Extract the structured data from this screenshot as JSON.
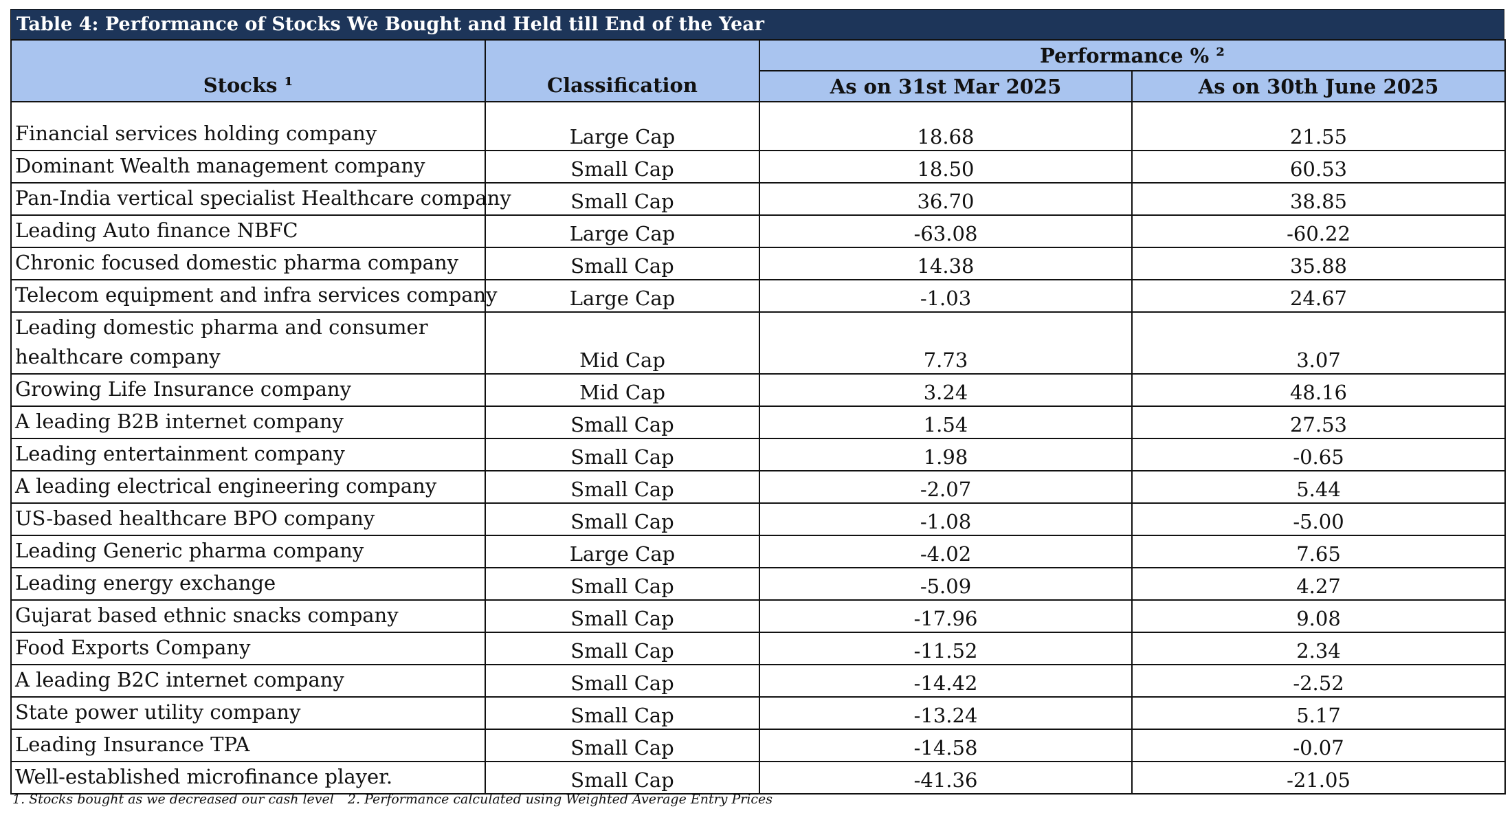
{
  "table": {
    "title": "Table 4: Performance of Stocks We Bought and Held till End of the Year",
    "headers": {
      "stocks": "Stocks ¹",
      "classification": "Classification",
      "performance": "Performance % ²",
      "col_mar": "As on 31st Mar 2025",
      "col_jun": "As on 30th June 2025"
    },
    "rows": [
      {
        "stock": "Financial services holding company",
        "classification": "Large Cap",
        "mar": "18.68",
        "jun": "21.55"
      },
      {
        "stock": "Dominant Wealth management company",
        "classification": "Small Cap",
        "mar": "18.50",
        "jun": "60.53"
      },
      {
        "stock": "Pan-India vertical specialist Healthcare company",
        "classification": "Small Cap",
        "mar": "36.70",
        "jun": "38.85"
      },
      {
        "stock": "Leading Auto finance NBFC",
        "classification": "Large Cap",
        "mar": "-63.08",
        "jun": "-60.22"
      },
      {
        "stock": "Chronic focused domestic pharma company",
        "classification": "Small Cap",
        "mar": "14.38",
        "jun": "35.88"
      },
      {
        "stock": "Telecom equipment and infra services company",
        "classification": "Large Cap",
        "mar": "-1.03",
        "jun": "24.67"
      },
      {
        "stock": "Leading domestic pharma and consumer healthcare company",
        "classification": "Mid Cap",
        "mar": "7.73",
        "jun": "3.07"
      },
      {
        "stock": "Growing Life Insurance company",
        "classification": "Mid Cap",
        "mar": "3.24",
        "jun": "48.16"
      },
      {
        "stock": "A leading B2B internet company",
        "classification": "Small Cap",
        "mar": "1.54",
        "jun": "27.53"
      },
      {
        "stock": "Leading entertainment company",
        "classification": "Small Cap",
        "mar": "1.98",
        "jun": "-0.65"
      },
      {
        "stock": "A leading electrical engineering company",
        "classification": "Small Cap",
        "mar": "-2.07",
        "jun": "5.44"
      },
      {
        "stock": "US-based healthcare BPO company",
        "classification": "Small Cap",
        "mar": "-1.08",
        "jun": "-5.00"
      },
      {
        "stock": "Leading Generic pharma company",
        "classification": "Large Cap",
        "mar": "-4.02",
        "jun": "7.65"
      },
      {
        "stock": "Leading energy exchange",
        "classification": "Small Cap",
        "mar": "-5.09",
        "jun": "4.27"
      },
      {
        "stock": "Gujarat based ethnic snacks company",
        "classification": "Small Cap",
        "mar": "-17.96",
        "jun": "9.08"
      },
      {
        "stock": "Food Exports Company",
        "classification": "Small Cap",
        "mar": "-11.52",
        "jun": "2.34"
      },
      {
        "stock": "A leading B2C internet company",
        "classification": "Small Cap",
        "mar": "-14.42",
        "jun": "-2.52"
      },
      {
        "stock": "State power utility company",
        "classification": "Small Cap",
        "mar": "-13.24",
        "jun": "5.17"
      },
      {
        "stock": "Leading Insurance TPA",
        "classification": "Small Cap",
        "mar": "-14.58",
        "jun": "-0.07"
      },
      {
        "stock": "Well-established microfinance player.",
        "classification": "Small Cap",
        "mar": "-41.36",
        "jun": "-21.05"
      }
    ]
  },
  "footnotes": {
    "note1": "1. Stocks bought as we decreased our cash level",
    "note2": "2. Performance calculated using Weighted Average Entry Prices"
  },
  "colors": {
    "title_bg": "#1d3559",
    "header_bg": "#a9c4ef"
  }
}
